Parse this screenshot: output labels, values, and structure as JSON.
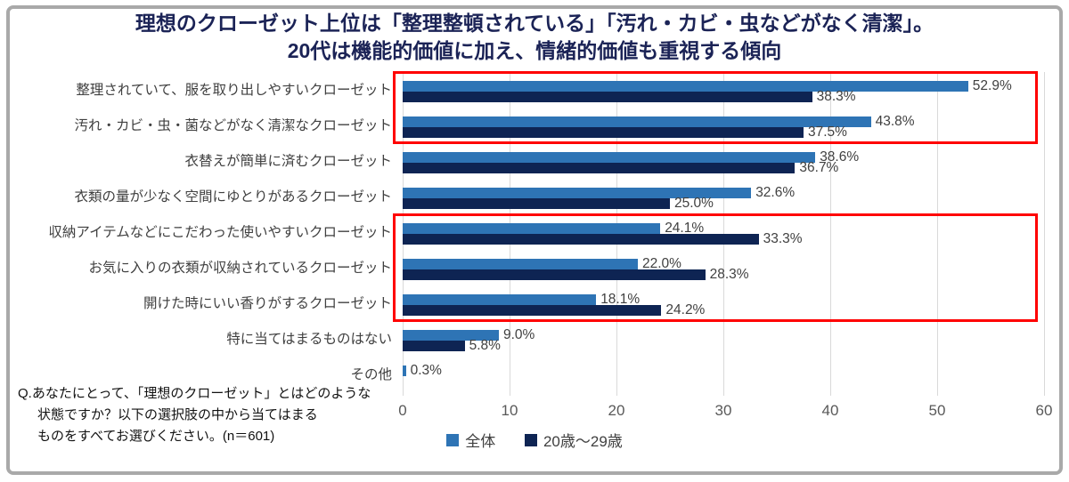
{
  "title": {
    "line1": "理想のクローゼット上位は「整理整頓されている」「汚れ・カビ・虫などがなく清潔」。",
    "line2": "20代は機能的価値に加え、情緒的価値も重視する傾向"
  },
  "footnote": {
    "line1": "Q.あなたにとって、「理想のクローゼット」とはどのような",
    "line2": "状態ですか？以下の選択肢の中から当てはまる",
    "line3": "ものをすべてお選びください。(n＝601)"
  },
  "legend": [
    {
      "label": "全体",
      "color": "#2e74b5"
    },
    {
      "label": "20歳〜29歳",
      "color": "#0e2453"
    }
  ],
  "chart_data": {
    "type": "bar",
    "orientation": "horizontal",
    "title": "理想のクローゼット上位は「整理整頓されている」「汚れ・カビ・虫などがなく清潔」。20代は機能的価値に加え、情緒的価値も重視する傾向",
    "categories": [
      "整理されていて、服を取り出しやすいクローゼット",
      "汚れ・カビ・虫・菌などがなく清潔なクローゼット",
      "衣替えが簡単に済むクローゼット",
      "衣類の量が少なく空間にゆとりがあるクローゼット",
      "収納アイテムなどにこだわった使いやすいクローゼット",
      "お気に入りの衣類が収納されているクローゼット",
      "開けた時にいい香りがするクローゼット",
      "特に当てはまるものはない",
      "その他"
    ],
    "series": [
      {
        "name": "全体",
        "color": "#2e74b5",
        "values": [
          52.9,
          43.8,
          38.6,
          32.6,
          24.1,
          22.0,
          18.1,
          9.0,
          0.3
        ]
      },
      {
        "name": "20歳〜29歳",
        "color": "#0e2453",
        "values": [
          38.3,
          37.5,
          36.7,
          25.0,
          33.3,
          28.3,
          24.2,
          5.8,
          null
        ]
      }
    ],
    "value_suffix": "%",
    "xlim": [
      0,
      60
    ],
    "xticks": [
      0,
      10,
      20,
      30,
      40,
      50,
      60
    ],
    "grid": "vertical-only",
    "legend_position": "bottom",
    "highlights": [
      {
        "from_row": 0,
        "to_row": 1
      },
      {
        "from_row": 4,
        "to_row": 6
      }
    ],
    "highlight_color": "#ff0000",
    "sample_note": "n＝601"
  }
}
